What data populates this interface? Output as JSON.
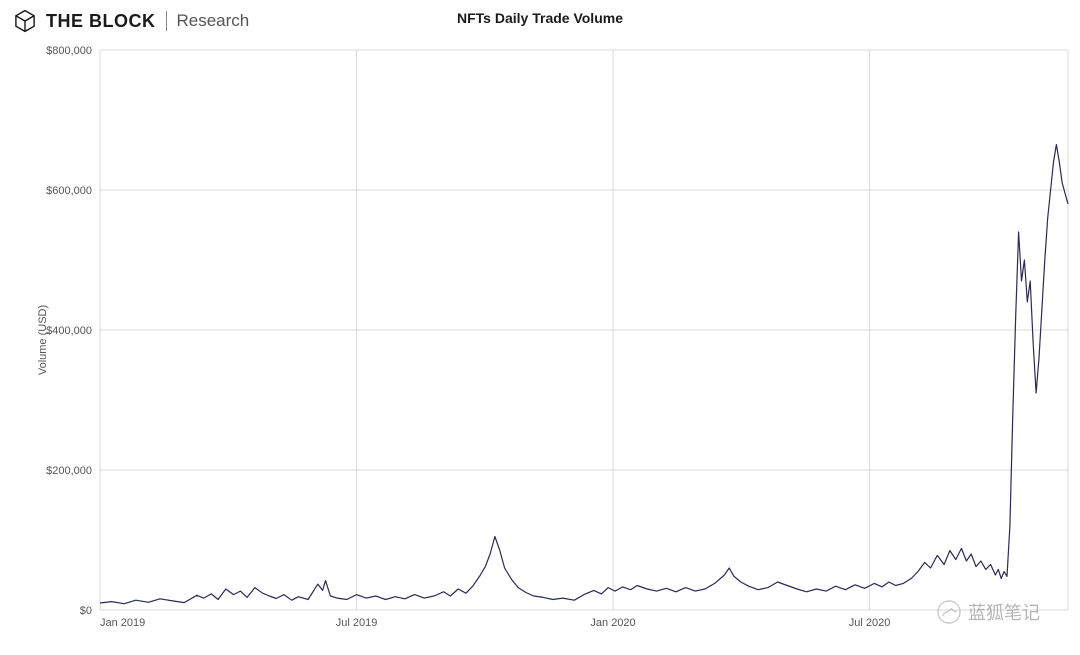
{
  "brand": {
    "name": "THE BLOCK",
    "sub": "Research"
  },
  "chart": {
    "type": "line",
    "title": "NFTs Daily Trade Volume",
    "y_axis_label": "Volume (USD)",
    "ylim": [
      0,
      800000
    ],
    "ytick_step": 200000,
    "ytick_labels": [
      "$0",
      "$200,000",
      "$400,000",
      "$600,000",
      "$800,000"
    ],
    "xtick_labels": [
      "Jan 2019",
      "Jul 2019",
      "Jan 2020",
      "Jul 2020"
    ],
    "xtick_positions": [
      0,
      0.265,
      0.53,
      0.795
    ],
    "background_color": "#ffffff",
    "grid_color": "#d9d9d9",
    "axis_color": "#888888",
    "line_color": "#2a2a55",
    "line_width": 1.2,
    "label_fontsize": 11,
    "title_fontsize": 14,
    "series": [
      {
        "x": 0.0,
        "y": 10000
      },
      {
        "x": 0.012,
        "y": 12000
      },
      {
        "x": 0.025,
        "y": 9000
      },
      {
        "x": 0.037,
        "y": 14000
      },
      {
        "x": 0.05,
        "y": 11000
      },
      {
        "x": 0.062,
        "y": 16000
      },
      {
        "x": 0.075,
        "y": 13000
      },
      {
        "x": 0.087,
        "y": 10500
      },
      {
        "x": 0.1,
        "y": 21000
      },
      {
        "x": 0.107,
        "y": 17000
      },
      {
        "x": 0.115,
        "y": 23000
      },
      {
        "x": 0.122,
        "y": 15000
      },
      {
        "x": 0.13,
        "y": 30000
      },
      {
        "x": 0.138,
        "y": 22000
      },
      {
        "x": 0.145,
        "y": 27000
      },
      {
        "x": 0.152,
        "y": 18000
      },
      {
        "x": 0.16,
        "y": 32000
      },
      {
        "x": 0.168,
        "y": 24000
      },
      {
        "x": 0.175,
        "y": 20000
      },
      {
        "x": 0.182,
        "y": 16500
      },
      {
        "x": 0.19,
        "y": 22000
      },
      {
        "x": 0.198,
        "y": 14000
      },
      {
        "x": 0.205,
        "y": 19000
      },
      {
        "x": 0.215,
        "y": 15000
      },
      {
        "x": 0.225,
        "y": 37000
      },
      {
        "x": 0.23,
        "y": 28000
      },
      {
        "x": 0.233,
        "y": 42000
      },
      {
        "x": 0.238,
        "y": 20000
      },
      {
        "x": 0.245,
        "y": 17000
      },
      {
        "x": 0.255,
        "y": 15000
      },
      {
        "x": 0.265,
        "y": 22000
      },
      {
        "x": 0.275,
        "y": 17000
      },
      {
        "x": 0.285,
        "y": 20000
      },
      {
        "x": 0.295,
        "y": 15000
      },
      {
        "x": 0.305,
        "y": 19000
      },
      {
        "x": 0.315,
        "y": 16000
      },
      {
        "x": 0.325,
        "y": 22000
      },
      {
        "x": 0.335,
        "y": 17000
      },
      {
        "x": 0.345,
        "y": 20000
      },
      {
        "x": 0.355,
        "y": 26000
      },
      {
        "x": 0.362,
        "y": 20000
      },
      {
        "x": 0.37,
        "y": 30000
      },
      {
        "x": 0.378,
        "y": 24000
      },
      {
        "x": 0.385,
        "y": 34000
      },
      {
        "x": 0.392,
        "y": 48000
      },
      {
        "x": 0.398,
        "y": 62000
      },
      {
        "x": 0.403,
        "y": 80000
      },
      {
        "x": 0.408,
        "y": 105000
      },
      {
        "x": 0.413,
        "y": 85000
      },
      {
        "x": 0.418,
        "y": 60000
      },
      {
        "x": 0.425,
        "y": 44000
      },
      {
        "x": 0.432,
        "y": 32000
      },
      {
        "x": 0.44,
        "y": 25000
      },
      {
        "x": 0.448,
        "y": 20000
      },
      {
        "x": 0.458,
        "y": 18000
      },
      {
        "x": 0.468,
        "y": 15000
      },
      {
        "x": 0.478,
        "y": 17000
      },
      {
        "x": 0.49,
        "y": 14000
      },
      {
        "x": 0.5,
        "y": 22000
      },
      {
        "x": 0.51,
        "y": 28000
      },
      {
        "x": 0.518,
        "y": 23000
      },
      {
        "x": 0.525,
        "y": 32000
      },
      {
        "x": 0.532,
        "y": 27000
      },
      {
        "x": 0.54,
        "y": 33000
      },
      {
        "x": 0.548,
        "y": 29000
      },
      {
        "x": 0.555,
        "y": 35000
      },
      {
        "x": 0.565,
        "y": 30000
      },
      {
        "x": 0.575,
        "y": 27000
      },
      {
        "x": 0.585,
        "y": 31000
      },
      {
        "x": 0.595,
        "y": 26000
      },
      {
        "x": 0.605,
        "y": 32000
      },
      {
        "x": 0.615,
        "y": 27000
      },
      {
        "x": 0.625,
        "y": 30000
      },
      {
        "x": 0.635,
        "y": 38000
      },
      {
        "x": 0.645,
        "y": 50000
      },
      {
        "x": 0.65,
        "y": 60000
      },
      {
        "x": 0.655,
        "y": 48000
      },
      {
        "x": 0.662,
        "y": 40000
      },
      {
        "x": 0.67,
        "y": 34000
      },
      {
        "x": 0.68,
        "y": 29000
      },
      {
        "x": 0.69,
        "y": 32000
      },
      {
        "x": 0.7,
        "y": 40000
      },
      {
        "x": 0.71,
        "y": 35000
      },
      {
        "x": 0.72,
        "y": 30000
      },
      {
        "x": 0.73,
        "y": 26000
      },
      {
        "x": 0.74,
        "y": 30000
      },
      {
        "x": 0.75,
        "y": 27000
      },
      {
        "x": 0.76,
        "y": 34000
      },
      {
        "x": 0.77,
        "y": 29000
      },
      {
        "x": 0.78,
        "y": 36000
      },
      {
        "x": 0.79,
        "y": 31000
      },
      {
        "x": 0.8,
        "y": 38000
      },
      {
        "x": 0.808,
        "y": 33000
      },
      {
        "x": 0.815,
        "y": 40000
      },
      {
        "x": 0.822,
        "y": 35000
      },
      {
        "x": 0.83,
        "y": 38000
      },
      {
        "x": 0.838,
        "y": 45000
      },
      {
        "x": 0.845,
        "y": 55000
      },
      {
        "x": 0.852,
        "y": 68000
      },
      {
        "x": 0.858,
        "y": 60000
      },
      {
        "x": 0.865,
        "y": 78000
      },
      {
        "x": 0.872,
        "y": 65000
      },
      {
        "x": 0.878,
        "y": 85000
      },
      {
        "x": 0.884,
        "y": 72000
      },
      {
        "x": 0.89,
        "y": 88000
      },
      {
        "x": 0.895,
        "y": 70000
      },
      {
        "x": 0.9,
        "y": 80000
      },
      {
        "x": 0.905,
        "y": 62000
      },
      {
        "x": 0.91,
        "y": 70000
      },
      {
        "x": 0.915,
        "y": 58000
      },
      {
        "x": 0.92,
        "y": 65000
      },
      {
        "x": 0.925,
        "y": 50000
      },
      {
        "x": 0.928,
        "y": 58000
      },
      {
        "x": 0.931,
        "y": 45000
      },
      {
        "x": 0.934,
        "y": 55000
      },
      {
        "x": 0.937,
        "y": 48000
      },
      {
        "x": 0.94,
        "y": 120000
      },
      {
        "x": 0.943,
        "y": 280000
      },
      {
        "x": 0.946,
        "y": 420000
      },
      {
        "x": 0.949,
        "y": 540000
      },
      {
        "x": 0.952,
        "y": 470000
      },
      {
        "x": 0.955,
        "y": 500000
      },
      {
        "x": 0.958,
        "y": 440000
      },
      {
        "x": 0.961,
        "y": 470000
      },
      {
        "x": 0.964,
        "y": 380000
      },
      {
        "x": 0.967,
        "y": 310000
      },
      {
        "x": 0.97,
        "y": 360000
      },
      {
        "x": 0.973,
        "y": 430000
      },
      {
        "x": 0.976,
        "y": 500000
      },
      {
        "x": 0.979,
        "y": 560000
      },
      {
        "x": 0.982,
        "y": 600000
      },
      {
        "x": 0.985,
        "y": 640000
      },
      {
        "x": 0.988,
        "y": 665000
      },
      {
        "x": 0.991,
        "y": 640000
      },
      {
        "x": 0.994,
        "y": 610000
      },
      {
        "x": 0.997,
        "y": 595000
      },
      {
        "x": 1.0,
        "y": 580000
      }
    ]
  },
  "watermark_text": "蓝狐笔记"
}
